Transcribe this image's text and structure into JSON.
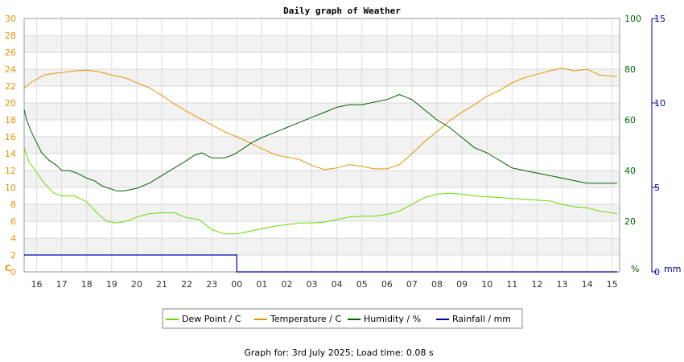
{
  "chart_data": {
    "type": "line",
    "title": "Daily graph of Weather",
    "x_tick_labels": [
      "16",
      "17",
      "18",
      "19",
      "20",
      "21",
      "22",
      "23",
      "00",
      "01",
      "02",
      "03",
      "04",
      "05",
      "06",
      "07",
      "08",
      "09",
      "10",
      "11",
      "12",
      "13",
      "14",
      "15"
    ],
    "left_axis": {
      "unit_label": "C",
      "ylim": [
        0,
        30
      ],
      "ticks": [
        "0",
        "2",
        "4",
        "6",
        "8",
        "10",
        "12",
        "14",
        "16",
        "18",
        "20",
        "22",
        "24",
        "26",
        "28",
        "30"
      ],
      "color": "#e69500"
    },
    "right_axis_humidity": {
      "unit_label": "%",
      "ylim": [
        0,
        100
      ],
      "ticks": [
        "20",
        "40",
        "60",
        "80",
        "100"
      ],
      "color": "#006400"
    },
    "right_axis_rainfall": {
      "unit_label": "mm",
      "ylim": [
        0,
        15
      ],
      "ticks": [
        "0",
        "5",
        "10",
        "15"
      ],
      "color": "#0000aa"
    },
    "grid": true,
    "legend_position": "bottom",
    "series": [
      {
        "name": "Dew Point / C",
        "color": "#66dd00",
        "axis": "left",
        "x": [
          15.5,
          15.7,
          16.0,
          16.3,
          16.7,
          17.0,
          17.5,
          18.0,
          18.4,
          18.8,
          19.2,
          19.6,
          20.0,
          20.5,
          21.0,
          21.5,
          22.0,
          22.5,
          23.0,
          23.5,
          24.0,
          24.5,
          25.0,
          25.5,
          26.0,
          26.5,
          27.0,
          27.5,
          28.0,
          28.5,
          29.0,
          29.5,
          30.0,
          30.5,
          31.0,
          31.5,
          32.0,
          32.5,
          33.0,
          33.5,
          34.0,
          34.5,
          35.0,
          35.5,
          36.0,
          36.5,
          37.0,
          37.5,
          38.0,
          38.5,
          39.2
        ],
        "y": [
          14.7,
          13.0,
          11.8,
          10.5,
          9.3,
          9.0,
          9.0,
          8.3,
          7.0,
          6.0,
          5.8,
          6.0,
          6.5,
          6.9,
          7.0,
          7.0,
          6.4,
          6.2,
          5.0,
          4.5,
          4.5,
          4.8,
          5.1,
          5.4,
          5.6,
          5.8,
          5.8,
          5.9,
          6.2,
          6.5,
          6.6,
          6.6,
          6.8,
          7.2,
          8.0,
          8.8,
          9.2,
          9.3,
          9.2,
          9.0,
          8.9,
          8.8,
          8.7,
          8.6,
          8.5,
          8.4,
          8.0,
          7.7,
          7.6,
          7.2,
          6.9
        ]
      },
      {
        "name": "Temperature / C",
        "color": "#e69500",
        "axis": "left",
        "x": [
          15.5,
          15.7,
          16.0,
          16.3,
          16.7,
          17.0,
          17.5,
          18.0,
          18.5,
          19.0,
          19.5,
          20.0,
          20.5,
          21.0,
          21.5,
          22.0,
          22.5,
          23.0,
          23.5,
          24.0,
          24.5,
          25.0,
          25.5,
          26.0,
          26.5,
          27.0,
          27.5,
          28.0,
          28.5,
          29.0,
          29.5,
          30.0,
          30.5,
          31.0,
          31.5,
          32.0,
          32.5,
          33.0,
          33.5,
          34.0,
          34.5,
          35.0,
          35.5,
          36.0,
          36.5,
          37.0,
          37.5,
          38.0,
          38.5,
          39.2
        ],
        "y": [
          21.7,
          22.3,
          22.8,
          23.3,
          23.5,
          23.6,
          23.8,
          23.9,
          23.7,
          23.3,
          23.0,
          22.4,
          21.8,
          20.9,
          19.9,
          19.0,
          18.2,
          17.4,
          16.6,
          16.0,
          15.3,
          14.6,
          13.9,
          13.6,
          13.3,
          12.6,
          12.1,
          12.3,
          12.7,
          12.5,
          12.2,
          12.2,
          12.7,
          14.0,
          15.4,
          16.6,
          17.9,
          18.9,
          19.8,
          20.8,
          21.5,
          22.4,
          23.0,
          23.4,
          23.8,
          24.1,
          23.8,
          24.0,
          23.3,
          23.1
        ]
      },
      {
        "name": "Humidity / %",
        "color": "#006400",
        "axis": "right",
        "x": [
          15.5,
          15.6,
          15.8,
          16.0,
          16.2,
          16.5,
          16.8,
          17.0,
          17.3,
          17.6,
          18.0,
          18.3,
          18.6,
          18.9,
          19.2,
          19.5,
          20.0,
          20.5,
          21.0,
          21.5,
          22.0,
          22.3,
          22.6,
          23.0,
          23.5,
          23.8,
          24.0,
          24.3,
          24.6,
          25.0,
          25.5,
          26.0,
          26.5,
          27.0,
          27.5,
          28.0,
          28.5,
          29.0,
          29.5,
          30.0,
          30.5,
          31.0,
          31.5,
          32.0,
          32.5,
          33.0,
          33.5,
          34.0,
          34.5,
          35.0,
          35.5,
          36.0,
          36.5,
          37.0,
          37.5,
          38.0,
          38.5,
          39.2
        ],
        "y": [
          64,
          60,
          55,
          51,
          47,
          44,
          42,
          40,
          40,
          39,
          37,
          36,
          34,
          33,
          32,
          32,
          33,
          35,
          38,
          41,
          44,
          46,
          47,
          45,
          45,
          46,
          47,
          49,
          51,
          53,
          55,
          57,
          59,
          61,
          63,
          65,
          66,
          66,
          67,
          68,
          70,
          68,
          64,
          60,
          57,
          53,
          49,
          47,
          44,
          41,
          40,
          39,
          38,
          37,
          36,
          35,
          35,
          35
        ]
      },
      {
        "name": "Rainfall / mm",
        "color": "#0000aa",
        "axis": "rainfall",
        "x": [
          15.5,
          24.0,
          24.0,
          39.2
        ],
        "y": [
          1.0,
          1.0,
          0.0,
          0.0
        ]
      }
    ],
    "footer": "Graph for: 3rd July 2025; Load time: 0.08 s"
  }
}
